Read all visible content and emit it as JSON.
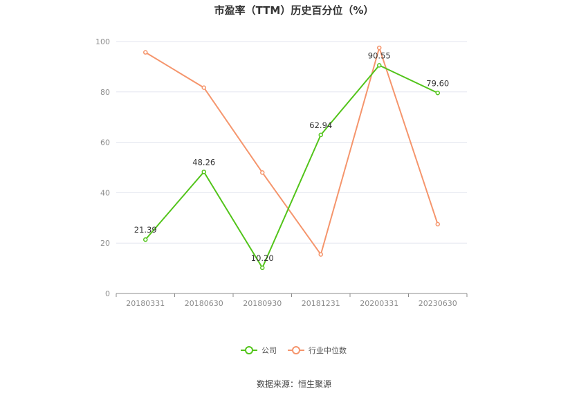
{
  "chart_data": {
    "type": "line",
    "title": "市盈率（TTM）历史百分位（%）",
    "categories": [
      "20180331",
      "20180630",
      "20180930",
      "20181231",
      "20200331",
      "20230630"
    ],
    "ylim": [
      0,
      100
    ],
    "yticks": [
      "0",
      "20",
      "40",
      "60",
      "80",
      "100"
    ],
    "grid": true,
    "legend_position": "bottom-center",
    "series": [
      {
        "name": "公司",
        "color": "#52c41a",
        "values": [
          21.39,
          48.26,
          10.2,
          62.94,
          90.55,
          79.6
        ],
        "labels": [
          "21.39",
          "48.26",
          "10.20",
          "62.94",
          "90.55",
          "79.60"
        ]
      },
      {
        "name": "行业中位数",
        "color": "#f5956c",
        "values": [
          95.7,
          81.7,
          48.0,
          15.5,
          97.5,
          27.5
        ]
      }
    ]
  },
  "source": "数据来源：恒生聚源"
}
